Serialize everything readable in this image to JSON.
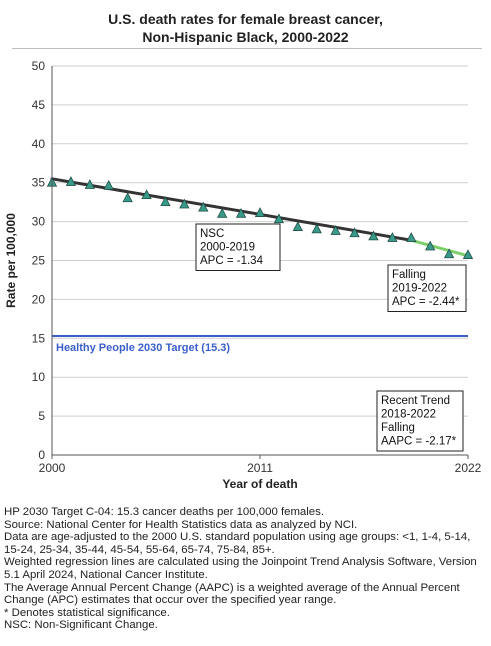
{
  "title_line1": "U.S. death rates for female breast cancer,",
  "title_line2": "Non-Hispanic Black,  2000-2022",
  "chart_data": {
    "type": "line",
    "x_label": "Year of death",
    "y_label": "Rate per 100,000",
    "xlim": [
      2000,
      2022
    ],
    "ylim": [
      0,
      50
    ],
    "x_ticks": [
      "2000",
      "2011",
      "2022"
    ],
    "y_ticks": [
      "0",
      "5",
      "10",
      "15",
      "20",
      "25",
      "30",
      "35",
      "40",
      "45",
      "50"
    ],
    "grid": true,
    "observed": {
      "x": [
        2000,
        2001,
        2002,
        2003,
        2004,
        2005,
        2006,
        2007,
        2008,
        2009,
        2010,
        2011,
        2012,
        2013,
        2014,
        2015,
        2016,
        2017,
        2018,
        2019,
        2020,
        2021,
        2022
      ],
      "y": [
        35.0,
        35.1,
        34.7,
        34.6,
        33.0,
        33.4,
        32.5,
        32.2,
        31.8,
        31.0,
        31.0,
        31.1,
        30.3,
        29.3,
        29.0,
        28.8,
        28.5,
        28.1,
        27.9,
        27.9,
        26.8,
        25.8,
        25.7
      ],
      "color": "#3a9a8a"
    },
    "trend_segments": [
      {
        "x": [
          2000,
          2019
        ],
        "y": [
          35.5,
          27.6
        ],
        "color": "#333333"
      },
      {
        "x": [
          2019,
          2022
        ],
        "y": [
          27.6,
          25.6
        ],
        "color": "#7dcf6a"
      }
    ],
    "target": {
      "y": 15.3,
      "label": "Healthy People 2030 Target (15.3)",
      "color": "#3a5fcd"
    },
    "annotations": [
      {
        "lines": [
          "NSC",
          "2000-2019",
          "APC = -1.34"
        ]
      },
      {
        "lines": [
          "Falling",
          "2019-2022",
          "APC = -2.44*"
        ]
      },
      {
        "lines": [
          "Recent Trend",
          "2018-2022",
          "Falling",
          "AAPC = -2.17*"
        ]
      }
    ]
  },
  "footnotes": [
    "HP 2030 Target C-04: 15.3 cancer deaths per 100,000 females.",
    "Source: National Center for Health Statistics data as analyzed by NCI.",
    "Data are age-adjusted to the 2000 U.S. standard population using age groups: <1, 1-4, 5-14, 15-24, 25-34, 35-44, 45-54, 55-64, 65-74, 75-84, 85+.",
    "Weighted regression lines are calculated using the Joinpoint Trend Analysis Software, Version 5.1 April 2024, National Cancer Institute.",
    "The Average Annual Percent Change (AAPC) is a weighted average of the Annual Percent Change (APC) estimates that occur over the specified year range.",
    "* Denotes statistical significance.",
    "NSC: Non-Significant Change."
  ]
}
